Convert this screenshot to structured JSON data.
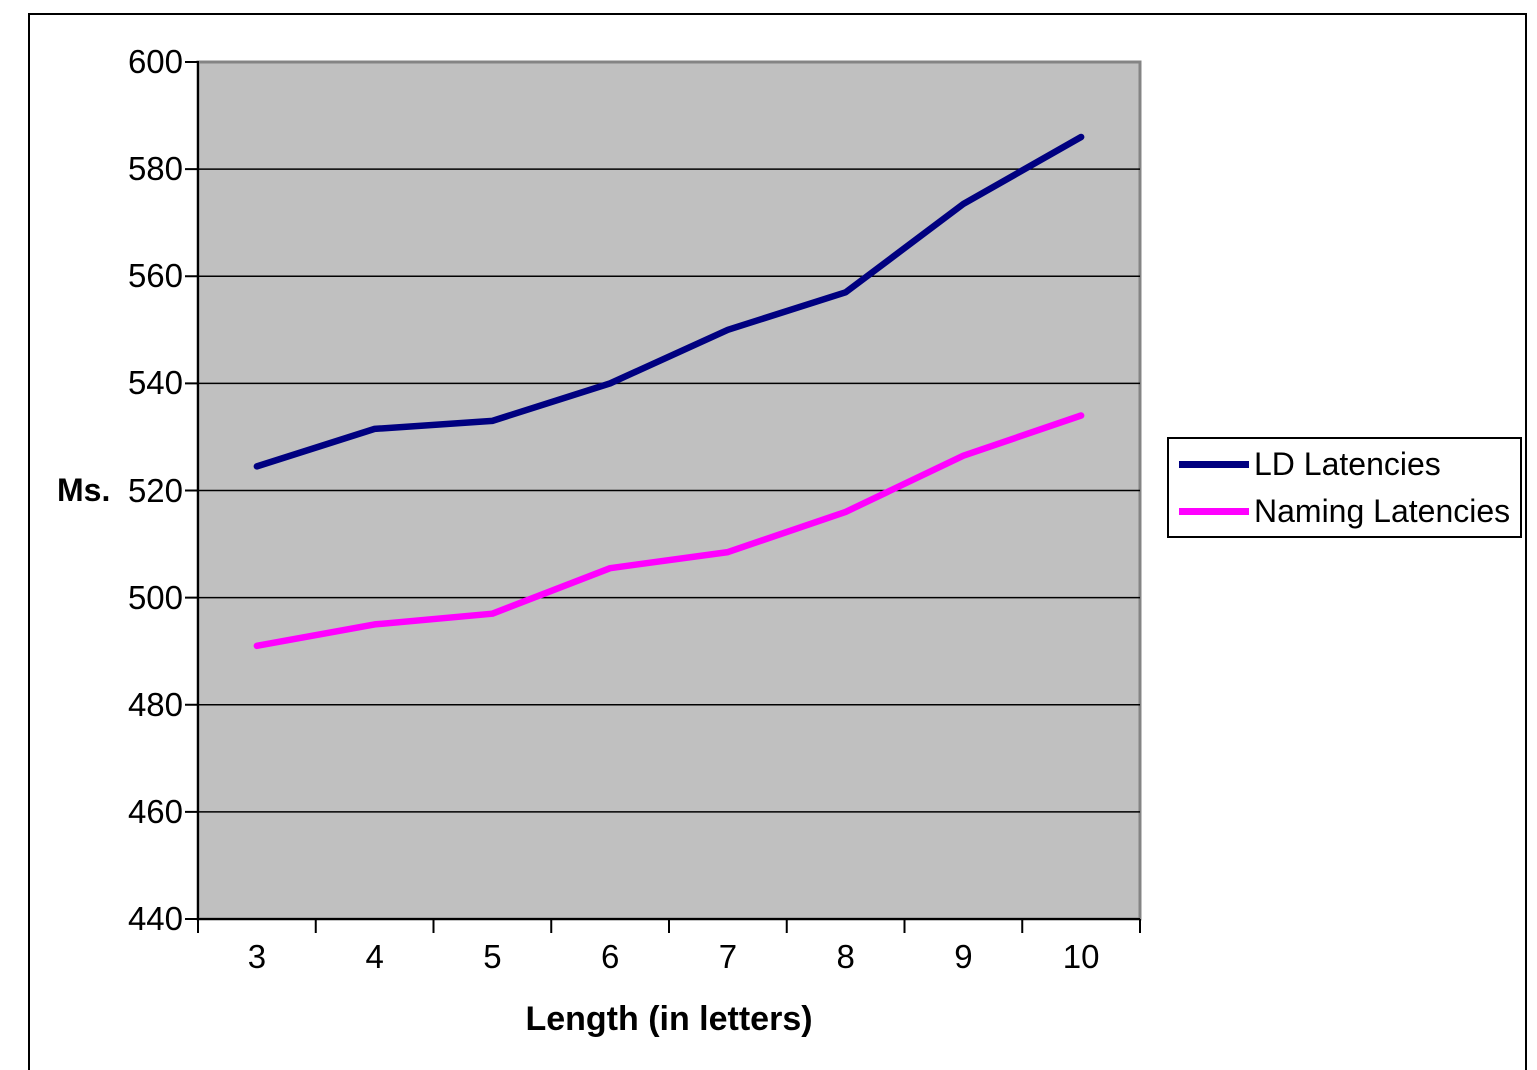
{
  "chart_data": {
    "type": "line",
    "title": "",
    "xlabel": "Length (in letters)",
    "ylabel": "Ms.",
    "categories": [
      "3",
      "4",
      "5",
      "6",
      "7",
      "8",
      "9",
      "10"
    ],
    "series": [
      {
        "name": "LD Latencies",
        "color": "#000080",
        "values": [
          524.5,
          531.5,
          533,
          540,
          550,
          557,
          573.5,
          586
        ]
      },
      {
        "name": "Naming Latencies",
        "color": "#FF00FF",
        "values": [
          491,
          495,
          497,
          505.5,
          508.5,
          516,
          526.5,
          534
        ]
      }
    ],
    "ylim": [
      440,
      600
    ],
    "yticks": [
      440,
      460,
      480,
      500,
      520,
      540,
      560,
      580,
      600
    ],
    "grid": "horizontal",
    "legend_position": "right"
  },
  "colors": {
    "plot_background": "#C0C0C0",
    "plot_border": "#848484",
    "gridline": "#000000",
    "axis": "#000000",
    "frame_border": "#000000",
    "ld_line": "#000080",
    "naming_line": "#FF00FF"
  }
}
